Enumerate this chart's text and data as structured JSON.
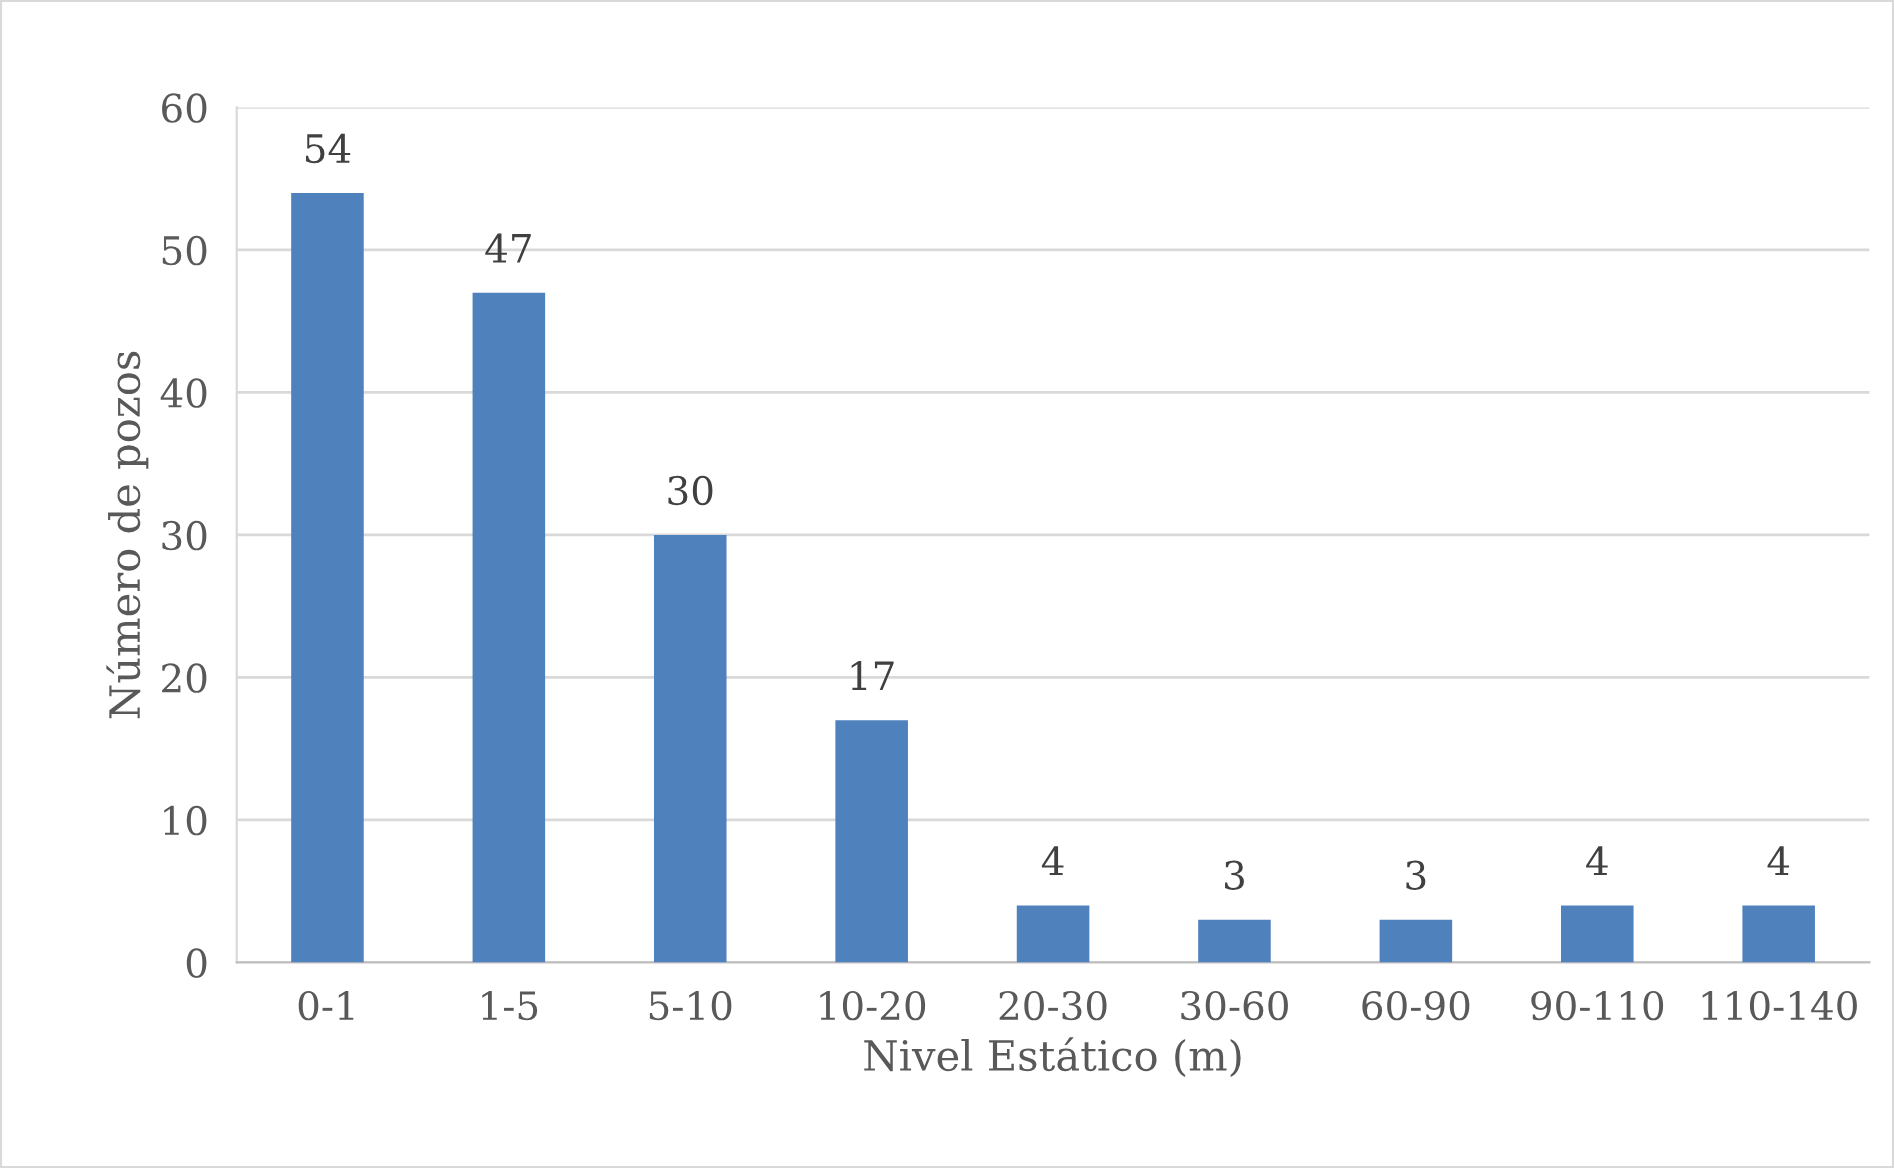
{
  "chart_data": {
    "type": "bar",
    "xlabel": "Nivel Estático (m)",
    "ylabel": "Número de pozos",
    "categories": [
      "0-1",
      "1-5",
      "5-10",
      "10-20",
      "20-30",
      "30-60",
      "60-90",
      "90-110",
      "110-140"
    ],
    "values": [
      54,
      47,
      30,
      17,
      4,
      3,
      3,
      4,
      4
    ],
    "color": "#4f81bd",
    "ylim": [
      0,
      60
    ],
    "yticks": [
      0,
      10,
      20,
      30,
      40,
      50,
      60
    ],
    "grid": "y",
    "data_labels": true
  }
}
